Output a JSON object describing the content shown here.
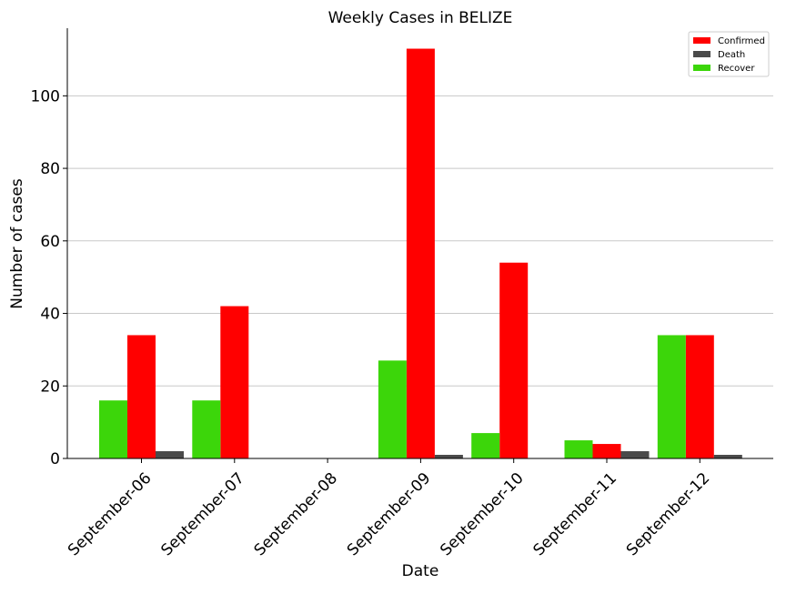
{
  "chart_data": {
    "type": "bar",
    "title": "Weekly Cases in BELIZE",
    "xlabel": "Date",
    "ylabel": "Number of cases",
    "categories": [
      "September-06",
      "September-07",
      "September-08",
      "September-09",
      "September-10",
      "September-11",
      "September-12"
    ],
    "series": [
      {
        "name": "Confirmed",
        "color": "#ff0000",
        "values": [
          34,
          42,
          0,
          113,
          54,
          4,
          34
        ]
      },
      {
        "name": "Death",
        "color": "#4a4a4a",
        "values": [
          2,
          0,
          0,
          1,
          0,
          2,
          1
        ]
      },
      {
        "name": "Recover",
        "color": "#3cd60a",
        "values": [
          16,
          16,
          0,
          27,
          7,
          5,
          34
        ]
      }
    ],
    "bar_order": [
      "Recover",
      "Confirmed",
      "Death"
    ],
    "ylim": [
      0,
      118.65
    ],
    "yticks": [
      0,
      20,
      40,
      60,
      80,
      100
    ],
    "grid": "horizontal",
    "legend_position": "top-right"
  }
}
